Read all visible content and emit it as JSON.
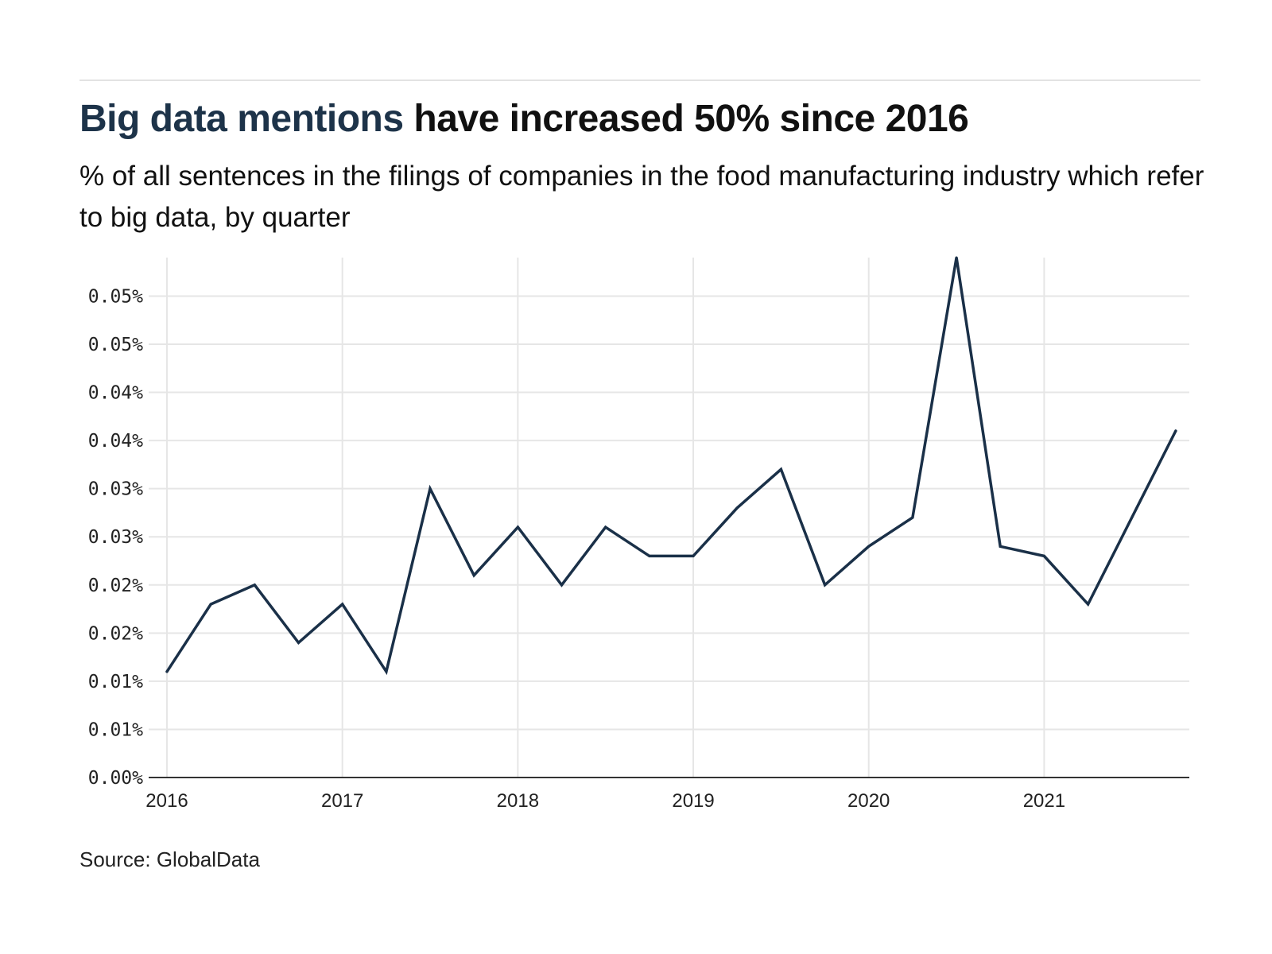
{
  "header": {
    "title_highlight": "Big data mentions",
    "title_rest": " have increased 50% since 2016",
    "subtitle": "% of all sentences in the filings of companies in the food manufacturing industry which refer to big data, by quarter"
  },
  "footer": {
    "source": "Source: GlobalData"
  },
  "colors": {
    "highlight": "#1d3349",
    "line": "#1a3048",
    "grid": "#e6e6e6",
    "axis": "#333333"
  },
  "chart_data": {
    "type": "line",
    "title": "Big data mentions have increased 50% since 2016",
    "subtitle": "% of all sentences in the filings of companies in the food manufacturing industry which refer to big data, by quarter",
    "xlabel": "",
    "ylabel": "",
    "x": [
      "2016 Q1",
      "2016 Q2",
      "2016 Q3",
      "2016 Q4",
      "2017 Q1",
      "2017 Q2",
      "2017 Q3",
      "2017 Q4",
      "2018 Q1",
      "2018 Q2",
      "2018 Q3",
      "2018 Q4",
      "2019 Q1",
      "2019 Q2",
      "2019 Q3",
      "2019 Q4",
      "2020 Q1",
      "2020 Q2",
      "2020 Q3",
      "2020 Q4",
      "2021 Q1",
      "2021 Q2",
      "2021 Q3",
      "2021 Q4"
    ],
    "series": [
      {
        "name": "Big data mentions (%)",
        "values": [
          0.011,
          0.018,
          0.02,
          0.014,
          0.018,
          0.011,
          0.03,
          0.021,
          0.026,
          0.02,
          0.026,
          0.023,
          0.023,
          0.028,
          0.032,
          0.02,
          0.024,
          0.027,
          0.054,
          0.024,
          0.023,
          0.018,
          0.027,
          0.036
        ]
      }
    ],
    "x_tick_labels": [
      "2016",
      "2017",
      "2018",
      "2019",
      "2020",
      "2021"
    ],
    "y_ticks": [
      0.0,
      0.005,
      0.01,
      0.015,
      0.02,
      0.025,
      0.03,
      0.035,
      0.04,
      0.045,
      0.05
    ],
    "y_tick_labels": [
      "0.00%",
      "0.01%",
      "0.01%",
      "0.02%",
      "0.02%",
      "0.03%",
      "0.03%",
      "0.04%",
      "0.04%",
      "0.05%",
      "0.05%"
    ],
    "ylim": [
      0,
      0.054
    ],
    "grid": true,
    "legend": "none",
    "source": "Source: GlobalData"
  }
}
